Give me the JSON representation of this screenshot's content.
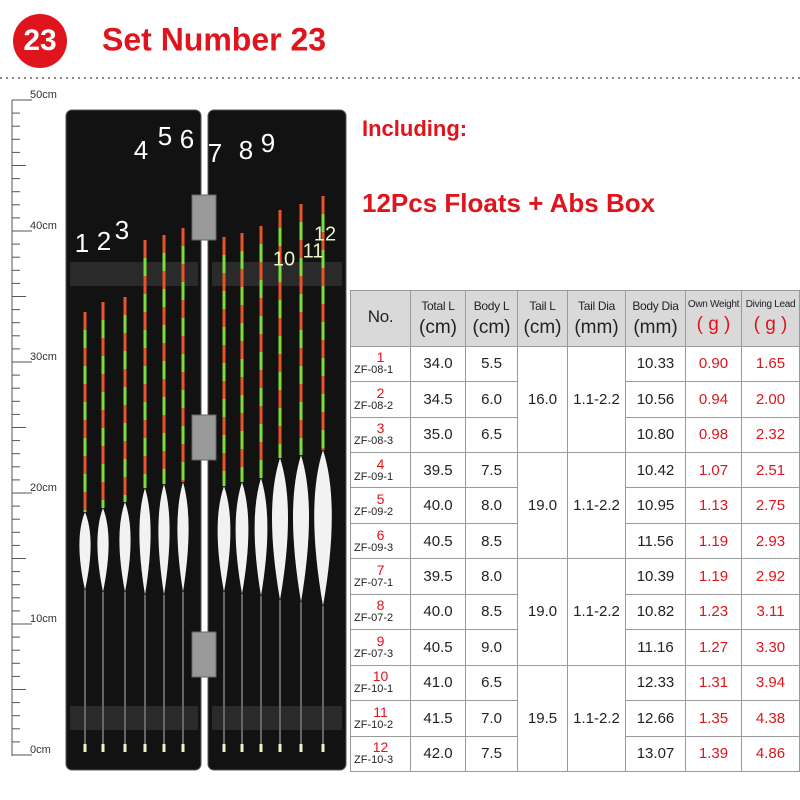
{
  "header": {
    "badge": "23",
    "title": "Set Number 23"
  },
  "ruler": {
    "labels": [
      "50cm",
      "40cm",
      "30cm",
      "20cm",
      "10cm",
      "0cm"
    ]
  },
  "float_numbers": [
    "1",
    "2",
    "3",
    "4",
    "5",
    "6",
    "7",
    "8",
    "9",
    "10",
    "11",
    "12"
  ],
  "info": {
    "including": "Including:",
    "contents": "12Pcs Floats + Abs Box"
  },
  "table": {
    "columns": [
      {
        "label": "No."
      },
      {
        "label": "Total L",
        "unit": "(cm)"
      },
      {
        "label": "Body L",
        "unit": "(cm)"
      },
      {
        "label": "Tail L",
        "unit": "(cm)"
      },
      {
        "label": "Tail Dia",
        "unit": "(mm)"
      },
      {
        "label": "Body Dia",
        "unit": "(mm)"
      },
      {
        "label": "Own Weight",
        "unit": "( g )"
      },
      {
        "label": "Diving Lead",
        "unit": "( g )"
      }
    ],
    "groups": [
      {
        "tail_l": "16.0",
        "tail_dia": "1.1-2.2",
        "rows": [
          {
            "index": "1",
            "model": "ZF-08-1",
            "total_l": "34.0",
            "body_l": "5.5",
            "body_dia": "10.33",
            "weight": "0.90",
            "lead": "1.65"
          },
          {
            "index": "2",
            "model": "ZF-08-2",
            "total_l": "34.5",
            "body_l": "6.0",
            "body_dia": "10.56",
            "weight": "0.94",
            "lead": "2.00"
          },
          {
            "index": "3",
            "model": "ZF-08-3",
            "total_l": "35.0",
            "body_l": "6.5",
            "body_dia": "10.80",
            "weight": "0.98",
            "lead": "2.32"
          }
        ]
      },
      {
        "tail_l": "19.0",
        "tail_dia": "1.1-2.2",
        "rows": [
          {
            "index": "4",
            "model": "ZF-09-1",
            "total_l": "39.5",
            "body_l": "7.5",
            "body_dia": "10.42",
            "weight": "1.07",
            "lead": "2.51"
          },
          {
            "index": "5",
            "model": "ZF-09-2",
            "total_l": "40.0",
            "body_l": "8.0",
            "body_dia": "10.95",
            "weight": "1.13",
            "lead": "2.75"
          },
          {
            "index": "6",
            "model": "ZF-09-3",
            "total_l": "40.5",
            "body_l": "8.5",
            "body_dia": "11.56",
            "weight": "1.19",
            "lead": "2.93"
          }
        ]
      },
      {
        "tail_l": "19.0",
        "tail_dia": "1.1-2.2",
        "rows": [
          {
            "index": "7",
            "model": "ZF-07-1",
            "total_l": "39.5",
            "body_l": "8.0",
            "body_dia": "10.39",
            "weight": "1.19",
            "lead": "2.92"
          },
          {
            "index": "8",
            "model": "ZF-07-2",
            "total_l": "40.0",
            "body_l": "8.5",
            "body_dia": "10.82",
            "weight": "1.23",
            "lead": "3.11"
          },
          {
            "index": "9",
            "model": "ZF-07-3",
            "total_l": "40.5",
            "body_l": "9.0",
            "body_dia": "11.16",
            "weight": "1.27",
            "lead": "3.30"
          }
        ]
      },
      {
        "tail_l": "19.5",
        "tail_dia": "1.1-2.2",
        "rows": [
          {
            "index": "10",
            "model": "ZF-10-1",
            "total_l": "41.0",
            "body_l": "6.5",
            "body_dia": "12.33",
            "weight": "1.31",
            "lead": "3.94"
          },
          {
            "index": "11",
            "model": "ZF-10-2",
            "total_l": "41.5",
            "body_l": "7.0",
            "body_dia": "12.66",
            "weight": "1.35",
            "lead": "4.38"
          },
          {
            "index": "12",
            "model": "ZF-10-3",
            "total_l": "42.0",
            "body_l": "7.5",
            "body_dia": "13.07",
            "weight": "1.39",
            "lead": "4.86"
          }
        ]
      }
    ]
  }
}
